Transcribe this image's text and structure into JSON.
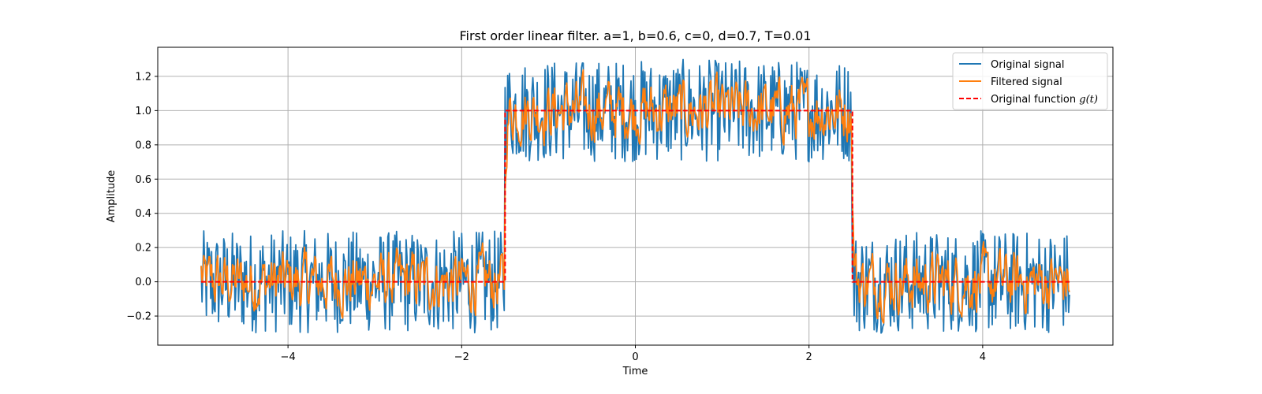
{
  "chart_data": {
    "type": "line",
    "title": "First order linear filter. a=1, b=0.6, c=0, d=0.7, T=0.01",
    "xlabel": "Time",
    "ylabel": "Amplitude",
    "xlim": [
      -5.5,
      5.5
    ],
    "ylim": [
      -0.37,
      1.37
    ],
    "grid": true,
    "legend_position": "top-right",
    "x_ticks": [
      -4,
      -2,
      0,
      2,
      4
    ],
    "x_tick_labels": [
      "−4",
      "−2",
      "0",
      "2",
      "4"
    ],
    "y_ticks": [
      -0.2,
      0.0,
      0.2,
      0.4,
      0.6,
      0.8,
      1.0,
      1.2
    ],
    "y_tick_labels": [
      "−0.2",
      "0.0",
      "0.2",
      "0.4",
      "0.6",
      "0.8",
      "1.0",
      "1.2"
    ],
    "series": [
      {
        "name": "Original signal",
        "color": "#1f77b4",
        "style": "solid",
        "description": "step function g(t) plus uniform noise in ±0.3, sampled every 0.01 from -5 to 5",
        "x_range": [
          -5,
          5
        ],
        "noise_amplitude": 0.3
      },
      {
        "name": "Filtered signal",
        "color": "#ff7f0e",
        "style": "solid",
        "x_range": [
          -5,
          5
        ]
      },
      {
        "name": "Original function $g(t)$",
        "legend_label": "Original function",
        "legend_math": "g(t)",
        "color": "#ff0000",
        "style": "dashed",
        "points": [
          [
            -5,
            0
          ],
          [
            -1.5,
            0
          ],
          [
            -1.5,
            1
          ],
          [
            2.5,
            1
          ],
          [
            2.5,
            0
          ],
          [
            5,
            0
          ]
        ]
      }
    ]
  }
}
